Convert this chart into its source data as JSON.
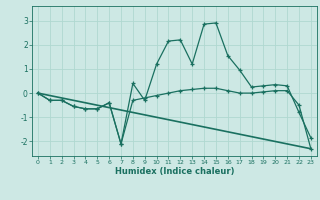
{
  "xlabel": "Humidex (Indice chaleur)",
  "ylabel": "",
  "background_color": "#cde8e4",
  "grid_color": "#b0d8d0",
  "line_color": "#1a7060",
  "xlim": [
    -0.5,
    23.5
  ],
  "ylim": [
    -2.6,
    3.6
  ],
  "yticks": [
    -2,
    -1,
    0,
    1,
    2,
    3
  ],
  "xticks": [
    0,
    1,
    2,
    3,
    4,
    5,
    6,
    7,
    8,
    9,
    10,
    11,
    12,
    13,
    14,
    15,
    16,
    17,
    18,
    19,
    20,
    21,
    22,
    23
  ],
  "series": [
    {
      "x": [
        0,
        1,
        2,
        3,
        4,
        5,
        6,
        7,
        8,
        9,
        10,
        11,
        12,
        13,
        14,
        15,
        16,
        17,
        18,
        19,
        20,
        21,
        22,
        23
      ],
      "y": [
        0,
        -0.3,
        -0.3,
        -0.55,
        -0.65,
        -0.65,
        -0.4,
        -2.1,
        -0.3,
        -0.2,
        -0.1,
        0.0,
        0.1,
        0.15,
        0.2,
        0.2,
        0.1,
        0.0,
        0.0,
        0.05,
        0.1,
        0.1,
        -0.5,
        -2.3
      ],
      "marker": true,
      "lw": 0.9
    },
    {
      "x": [
        0,
        1,
        2,
        3,
        4,
        5,
        6,
        7,
        8,
        9,
        10,
        11,
        12,
        13,
        14,
        15,
        16,
        17,
        18,
        19,
        20,
        21,
        22,
        23
      ],
      "y": [
        0,
        -0.3,
        -0.3,
        -0.55,
        -0.65,
        -0.65,
        -0.4,
        -2.1,
        0.4,
        -0.3,
        1.2,
        2.15,
        2.2,
        1.2,
        2.85,
        2.9,
        1.55,
        0.95,
        0.25,
        0.3,
        0.35,
        0.3,
        -0.8,
        -1.85
      ],
      "marker": true,
      "lw": 0.9
    },
    {
      "x": [
        0,
        23
      ],
      "y": [
        0,
        -2.3
      ],
      "marker": false,
      "lw": 1.2
    }
  ]
}
